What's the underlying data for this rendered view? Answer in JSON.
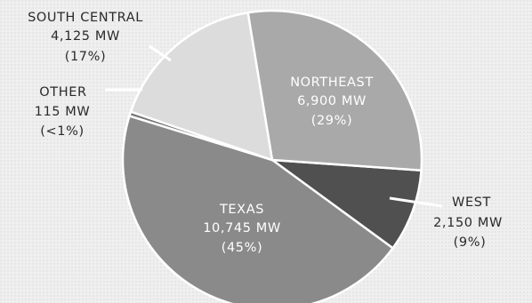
{
  "colors": {
    "background": "#efefef",
    "texture": "#d8d8d8",
    "slice_stroke": "#ffffff",
    "leader": "#ffffff"
  },
  "chart_data": {
    "type": "pie",
    "title": "",
    "start_angle_deg": 4,
    "slices": [
      {
        "key": "west",
        "name": "WEST",
        "value_text": "2,150 MW",
        "percent_text": "(9%)",
        "value": 2150,
        "color": "#505050",
        "label_position": "outside-right"
      },
      {
        "key": "texas",
        "name": "TEXAS",
        "value_text": "10,745 MW",
        "percent_text": "(45%)",
        "value": 10745,
        "color": "#8a8a8a",
        "label_position": "inside"
      },
      {
        "key": "other",
        "name": "OTHER",
        "value_text": "115 MW",
        "percent_text": "(<1%)",
        "value": 115,
        "color": "#767676",
        "label_position": "outside-left"
      },
      {
        "key": "south-central",
        "name": "SOUTH CENTRAL",
        "value_text": "4,125 MW",
        "percent_text": "(17%)",
        "value": 4125,
        "color": "#dcdcdc",
        "label_position": "outside-top-left"
      },
      {
        "key": "northeast",
        "name": "NORTHEAST",
        "value_text": "6,900 MW",
        "percent_text": "(29%)",
        "value": 6900,
        "color": "#a9a9a9",
        "label_position": "inside"
      }
    ]
  }
}
